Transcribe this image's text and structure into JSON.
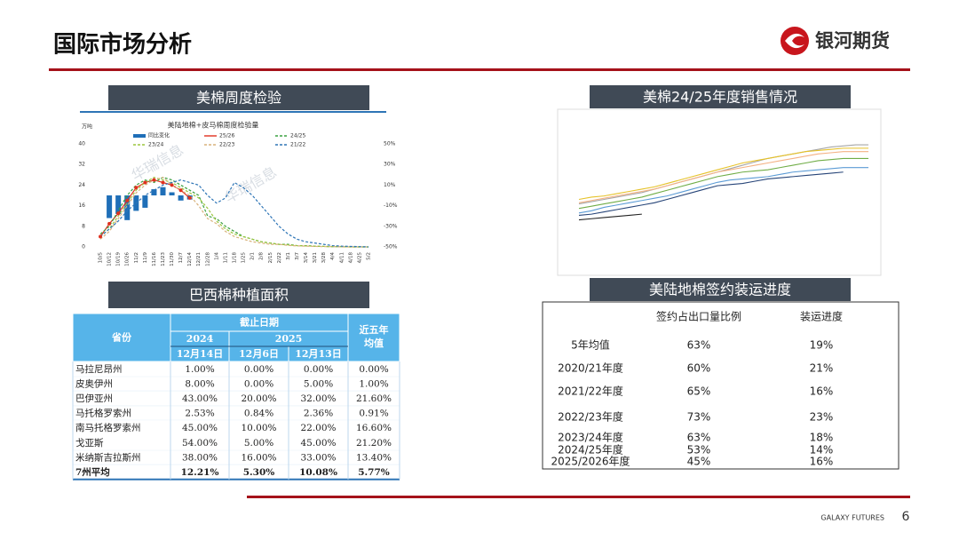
{
  "header": {
    "title": "国际市场分析",
    "logo": "银河期货"
  },
  "weekly": {
    "panel_title": "美棉周度检验",
    "chart_data": {
      "type": "line",
      "title": "美陆地棉+皮马棉周度检验量",
      "y_unit": "万吨",
      "watermark": "华瑞信息",
      "categories": [
        "10/5",
        "10/12",
        "10/19",
        "10/26",
        "11/2",
        "11/9",
        "11/16",
        "11/23",
        "11/30",
        "12/7",
        "12/14",
        "12/21",
        "12/28",
        "1/4",
        "1/11",
        "1/18",
        "1/25",
        "2/1",
        "2/8",
        "2/15",
        "2/22",
        "3/1",
        "3/7",
        "3/14",
        "3/21",
        "3/28",
        "4/4",
        "4/11",
        "4/18",
        "4/25",
        "5/2"
      ],
      "ylim": [
        0,
        40
      ],
      "yticks": [
        0,
        8,
        16,
        24,
        32,
        40
      ],
      "y2lim": [
        -50,
        50
      ],
      "y2ticks": [
        {
          "value": -50,
          "label": "-50%"
        },
        {
          "value": -30,
          "label": "-30%"
        },
        {
          "value": -10,
          "label": "-10%"
        },
        {
          "value": 10,
          "label": "10%"
        },
        {
          "value": 30,
          "label": "30%"
        },
        {
          "value": 50,
          "label": "50%"
        }
      ],
      "series": [
        {
          "name": "同比变化",
          "type": "bar",
          "axis": "y2",
          "color": "#1f6fb8",
          "values": [
            null,
            -22,
            -18,
            -24,
            -15,
            -12,
            6,
            8,
            3,
            -5,
            -4,
            null,
            null,
            null,
            null,
            null,
            null,
            null,
            null,
            null,
            null,
            null,
            null,
            null,
            null,
            null,
            null,
            null,
            null,
            null,
            null
          ]
        },
        {
          "name": "25/26",
          "color": "#e0301e",
          "dash": false,
          "values": [
            4,
            9,
            13,
            18,
            23,
            25,
            26,
            25,
            24,
            22,
            19,
            null,
            null,
            null,
            null,
            null,
            null,
            null,
            null,
            null,
            null,
            null,
            null,
            null,
            null,
            null,
            null,
            null,
            null,
            null,
            null
          ]
        },
        {
          "name": "24/25",
          "color": "#3aa040",
          "dash": true,
          "values": [
            5,
            8,
            14,
            20,
            24,
            26,
            25,
            27,
            26,
            24,
            22,
            20,
            12,
            11,
            8,
            6,
            4,
            3,
            2,
            1.5,
            1,
            1,
            0.5,
            0.5,
            0.3,
            0.2,
            0.1,
            0.1,
            0,
            0,
            0
          ]
        },
        {
          "name": "23/24",
          "color": "#9bc53d",
          "dash": true,
          "values": [
            4,
            7,
            12,
            17,
            22,
            25,
            27,
            26,
            25,
            23,
            21,
            19,
            15,
            10,
            7,
            5,
            4,
            3,
            2,
            1.5,
            1,
            0.8,
            0.5,
            0.4,
            0.3,
            0.2,
            0.1,
            0.1,
            0,
            0,
            0
          ]
        },
        {
          "name": "22/23",
          "color": "#d9b27c",
          "dash": true,
          "values": [
            3,
            6,
            11,
            16,
            21,
            24,
            26,
            27,
            24,
            22,
            20,
            16,
            11,
            9,
            6,
            4,
            3,
            2,
            1.5,
            1,
            1,
            0.6,
            0.4,
            0.3,
            0.2,
            0.1,
            0.1,
            0,
            0,
            0,
            0
          ]
        },
        {
          "name": "21/22",
          "color": "#2e75b6",
          "dash": true,
          "values": [
            4,
            7,
            10,
            14,
            17,
            20,
            22,
            24,
            25,
            26,
            25,
            24,
            20,
            17,
            19,
            25,
            23,
            20,
            16,
            12,
            8,
            5,
            3,
            2,
            1.5,
            1,
            0.5,
            0.3,
            0.2,
            0.1,
            0
          ]
        }
      ]
    }
  },
  "sales": {
    "panel_title": "美棉24/25年度销售情况",
    "chart_data": {
      "type": "line",
      "ylim": [
        0,
        100
      ],
      "series": [
        {
          "color": "#a6a6a6",
          "values": [
            30,
            32,
            34,
            36,
            38,
            40,
            43,
            46,
            49,
            52,
            55,
            58,
            61,
            64,
            67,
            70,
            72,
            74,
            76,
            78,
            80,
            81,
            82,
            82
          ]
        },
        {
          "color": "#e6c229",
          "values": [
            34,
            36,
            37,
            39,
            41,
            43,
            45,
            48,
            51,
            54,
            57,
            60,
            63,
            66,
            68,
            70,
            72,
            74,
            76,
            77,
            78,
            79,
            79,
            79
          ]
        },
        {
          "color": "#f4b183",
          "values": [
            31,
            33,
            35,
            37,
            39,
            41,
            43,
            46,
            49,
            52,
            55,
            58,
            60,
            62,
            64,
            66,
            68,
            70,
            72,
            74,
            75,
            76,
            76,
            76
          ]
        },
        {
          "color": "#70ad47",
          "values": [
            26,
            28,
            30,
            32,
            34,
            36,
            39,
            42,
            45,
            48,
            51,
            54,
            56,
            58,
            59,
            60,
            62,
            64,
            66,
            68,
            69,
            70,
            70,
            70
          ]
        },
        {
          "color": "#5b9bd5",
          "values": [
            22,
            24,
            27,
            29,
            31,
            33,
            35,
            37,
            40,
            43,
            46,
            49,
            51,
            52,
            53,
            54,
            56,
            58,
            59,
            60,
            61,
            62,
            62,
            62
          ]
        },
        {
          "color": "#264478",
          "values": [
            20,
            21,
            23,
            25,
            27,
            29,
            31,
            34,
            37,
            40,
            43,
            46,
            47,
            48,
            50,
            52,
            53,
            54,
            55,
            56,
            57,
            58,
            null,
            null
          ]
        },
        {
          "color": "#222222",
          "values": [
            16,
            17,
            18,
            19,
            20,
            21,
            null,
            null,
            null,
            null,
            null,
            null,
            null,
            null,
            null,
            null,
            null,
            null,
            null,
            null,
            null,
            null,
            null,
            null
          ]
        }
      ]
    }
  },
  "brazil_table": {
    "title": "巴西棉种植面积",
    "headers": {
      "province": "省份",
      "date": "截止日期",
      "y2024": "2024",
      "y2025": "2025",
      "d1": "12月14日",
      "d2": "12月6日",
      "d3": "12月13日",
      "avg": [
        "近五年",
        "均值"
      ]
    },
    "rows": [
      [
        "马拉尼昂州",
        "1.00%",
        "0.00%",
        "0.00%",
        "0.00%"
      ],
      [
        "皮奥伊州",
        "8.00%",
        "0.00%",
        "5.00%",
        "1.00%"
      ],
      [
        "巴伊亚州",
        "43.00%",
        "20.00%",
        "32.00%",
        "21.60%"
      ],
      [
        "马托格罗索州",
        "2.53%",
        "0.84%",
        "2.36%",
        "0.91%"
      ],
      [
        "南马托格罗索州",
        "45.00%",
        "10.00%",
        "22.00%",
        "16.60%"
      ],
      [
        "戈亚斯",
        "54.00%",
        "5.00%",
        "45.00%",
        "21.20%"
      ],
      [
        "米纳斯吉拉斯州",
        "38.00%",
        "16.00%",
        "33.00%",
        "13.40%"
      ],
      [
        "7州平均",
        "12.21%",
        "5.30%",
        "10.08%",
        "5.77%"
      ]
    ]
  },
  "shipping_table": {
    "title": "美陆地棉签约装运进度",
    "columns": [
      "签约占出口量比例",
      "装运进度"
    ],
    "rows": [
      [
        "5年均值",
        "63%",
        "19%"
      ],
      [
        "2020/21年度",
        "60%",
        "21%"
      ],
      [
        "2021/22年度",
        "65%",
        "16%"
      ],
      [
        "2022/23年度",
        "73%",
        "23%"
      ],
      [
        "2023/24年度",
        "63%",
        "18%"
      ],
      [
        "2024/25年度",
        "53%",
        "14%"
      ],
      [
        "2025/2026年度",
        "45%",
        "16%"
      ]
    ]
  },
  "footer": {
    "brand": "GALAXY FUTURES",
    "page": "6"
  }
}
